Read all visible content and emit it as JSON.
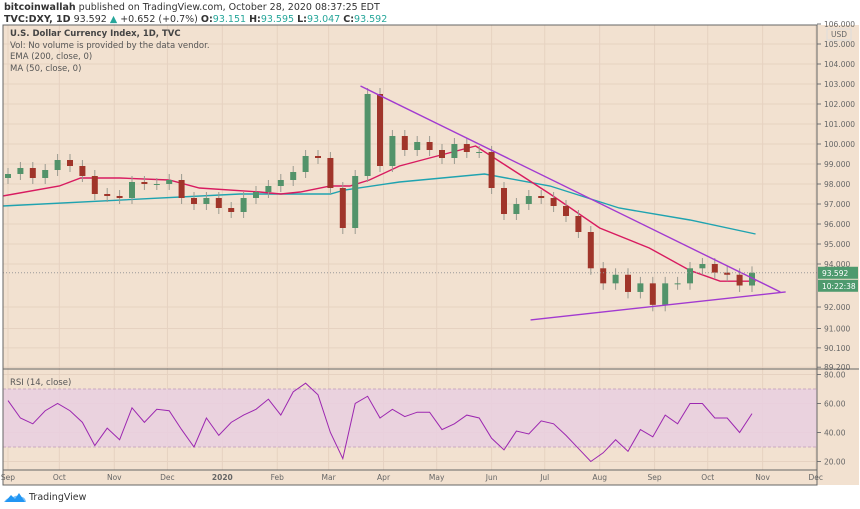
{
  "header": {
    "author": "bitcoinwallah",
    "published": " published on TradingView.com, October 28, 2020 08:37:25 EDT",
    "symbol": "TVC:DXY, 1D",
    "last": "93.592",
    "change": "+0.652 (+0.7%)",
    "o_label": "O:",
    "o": "93.151",
    "h_label": "H:",
    "h": "93.595",
    "l_label": "L:",
    "l": "93.047",
    "c_label": "C:",
    "c": "93.592"
  },
  "legend": {
    "title": "U.S. Dollar Currency Index, 1D, TVC",
    "vol": "Vol: No volume is provided by the data vendor.",
    "ema": "EMA (200, close, 0)",
    "ma": "MA (50, close, 0)"
  },
  "rsi_legend": "RSI (14, close)",
  "price_axis": {
    "currency": "USD",
    "ticks": [
      "106.000",
      "105.000",
      "104.000",
      "103.000",
      "102.000",
      "101.000",
      "100.000",
      "99.000",
      "98.000",
      "97.000",
      "96.000",
      "95.000",
      "94.000",
      "92.000",
      "91.000",
      "90.100",
      "89.200"
    ],
    "last_price_label": "93.592",
    "countdown_label": "10:22:38"
  },
  "rsi_axis": {
    "ticks": [
      "80.00",
      "60.00",
      "40.00",
      "20.00"
    ]
  },
  "logo": "TradingView",
  "colors": {
    "background": "#f2e1d0",
    "up": "#53936a",
    "down": "#a0352a",
    "ema200": "#1fa3b0",
    "ma50": "#d81b60",
    "trendline": "#a23ad0",
    "rsi": "#9c27b0",
    "rsi_band": "#e9cfe0",
    "price_label": "#4e9a6e"
  },
  "chart_data": [
    {
      "type": "candlestick",
      "title": "U.S. Dollar Currency Index, 1D, TVC",
      "ylim": [
        89.2,
        106
      ],
      "grid": true,
      "scale": "log",
      "time_labels": [
        {
          "label": "Sep",
          "date": "2019-09-02"
        },
        {
          "label": "Oct",
          "date": "2019-10-01"
        },
        {
          "label": "Nov",
          "date": "2019-11-01"
        },
        {
          "label": "Dec",
          "date": "2019-12-01"
        },
        {
          "label": "2020",
          "date": "2020-01-01",
          "bold": true
        },
        {
          "label": "Feb",
          "date": "2020-02-01"
        },
        {
          "label": "Mar",
          "date": "2020-03-01"
        },
        {
          "label": "Apr",
          "date": "2020-04-01"
        },
        {
          "label": "May",
          "date": "2020-05-01"
        },
        {
          "label": "Jun",
          "date": "2020-06-01"
        },
        {
          "label": "Jul",
          "date": "2020-07-01"
        },
        {
          "label": "Aug",
          "date": "2020-08-01"
        },
        {
          "label": "Sep",
          "date": "2020-09-01"
        },
        {
          "label": "Oct",
          "date": "2020-10-01"
        },
        {
          "label": "Nov",
          "date": "2020-11-01"
        },
        {
          "label": "Dec",
          "date": "2020-12-01"
        }
      ],
      "dates": [
        "2019-09-02",
        "2019-09-09",
        "2019-09-16",
        "2019-09-23",
        "2019-09-30",
        "2019-10-07",
        "2019-10-14",
        "2019-10-21",
        "2019-10-28",
        "2019-11-04",
        "2019-11-11",
        "2019-11-18",
        "2019-11-25",
        "2019-12-02",
        "2019-12-09",
        "2019-12-16",
        "2019-12-23",
        "2019-12-30",
        "2020-01-06",
        "2020-01-13",
        "2020-01-20",
        "2020-01-27",
        "2020-02-03",
        "2020-02-10",
        "2020-02-17",
        "2020-02-24",
        "2020-03-02",
        "2020-03-09",
        "2020-03-16",
        "2020-03-23",
        "2020-03-30",
        "2020-04-06",
        "2020-04-13",
        "2020-04-20",
        "2020-04-27",
        "2020-05-04",
        "2020-05-11",
        "2020-05-18",
        "2020-05-25",
        "2020-06-01",
        "2020-06-08",
        "2020-06-15",
        "2020-06-22",
        "2020-06-29",
        "2020-07-06",
        "2020-07-13",
        "2020-07-20",
        "2020-07-27",
        "2020-08-03",
        "2020-08-10",
        "2020-08-17",
        "2020-08-24",
        "2020-08-31",
        "2020-09-07",
        "2020-09-14",
        "2020-09-21",
        "2020-09-28",
        "2020-10-05",
        "2020-10-12",
        "2020-10-19",
        "2020-10-26"
      ],
      "close": [
        98.5,
        98.8,
        98.3,
        98.7,
        99.2,
        98.9,
        98.4,
        97.5,
        97.4,
        97.3,
        98.1,
        98.0,
        98.0,
        98.2,
        97.3,
        97.0,
        97.3,
        96.8,
        96.6,
        97.3,
        97.6,
        97.9,
        98.2,
        98.6,
        99.4,
        99.3,
        97.8,
        95.8,
        98.4,
        102.5,
        98.9,
        100.4,
        99.7,
        100.1,
        99.7,
        99.3,
        100.0,
        99.6,
        99.6,
        97.8,
        96.5,
        97.0,
        97.4,
        97.3,
        96.9,
        96.4,
        95.6,
        93.8,
        93.1,
        93.5,
        92.7,
        93.1,
        92.1,
        93.1,
        93.1,
        93.8,
        94.0,
        93.6,
        93.5,
        93.0,
        93.592
      ],
      "series": [
        {
          "name": "EMA (200, close, 0)",
          "points": [
            [
              "2019-08-30",
              96.9
            ],
            [
              "2020-01-11",
              97.5
            ],
            [
              "2020-03-02",
              97.5
            ],
            [
              "2020-03-10",
              97.7
            ],
            [
              "2020-04-10",
              98.1
            ],
            [
              "2020-05-28",
              98.5
            ],
            [
              "2020-07-04",
              97.9
            ],
            [
              "2020-08-12",
              96.8
            ],
            [
              "2020-09-21",
              96.2
            ],
            [
              "2020-10-28",
              95.5
            ]
          ]
        },
        {
          "name": "MA (50, close, 0)",
          "points": [
            [
              "2019-08-30",
              97.4
            ],
            [
              "2019-10-01",
              97.9
            ],
            [
              "2019-10-13",
              98.3
            ],
            [
              "2019-11-04",
              98.3
            ],
            [
              "2019-12-02",
              98.2
            ],
            [
              "2019-12-19",
              97.8
            ],
            [
              "2020-01-22",
              97.6
            ],
            [
              "2020-02-03",
              97.5
            ],
            [
              "2020-02-14",
              97.6
            ],
            [
              "2020-03-02",
              97.9
            ],
            [
              "2020-03-13",
              97.9
            ],
            [
              "2020-03-24",
              98.2
            ],
            [
              "2020-04-10",
              98.9
            ],
            [
              "2020-04-27",
              99.3
            ],
            [
              "2020-05-23",
              99.9
            ],
            [
              "2020-06-06",
              99.1
            ],
            [
              "2020-07-04",
              97.5
            ],
            [
              "2020-08-01",
              95.8
            ],
            [
              "2020-08-29",
              94.8
            ],
            [
              "2020-09-21",
              93.7
            ],
            [
              "2020-10-08",
              93.2
            ],
            [
              "2020-10-28",
              93.2
            ]
          ]
        }
      ],
      "trendlines": [
        {
          "from": [
            "2020-03-19",
            102.9
          ],
          "to": [
            "2020-11-11",
            92.7
          ]
        },
        {
          "from": [
            "2020-06-23",
            91.4
          ],
          "to": [
            "2020-11-14",
            92.7
          ]
        }
      ],
      "last_price": 93.592
    },
    {
      "type": "line",
      "title": "RSI (14, close)",
      "ylim": [
        15,
        82
      ],
      "band": [
        30,
        70
      ],
      "values": [
        62,
        50,
        46,
        55,
        60,
        55,
        47,
        31,
        43,
        35,
        57,
        47,
        56,
        55,
        42,
        30,
        50,
        38,
        47,
        52,
        56,
        63,
        52,
        68,
        74,
        66,
        40,
        22,
        60,
        65,
        50,
        56,
        51,
        54,
        54,
        42,
        46,
        52,
        50,
        36,
        28,
        41,
        39,
        48,
        46,
        38,
        29,
        20,
        26,
        35,
        27,
        42,
        37,
        52,
        46,
        60,
        60,
        50,
        50,
        40,
        53
      ]
    }
  ]
}
